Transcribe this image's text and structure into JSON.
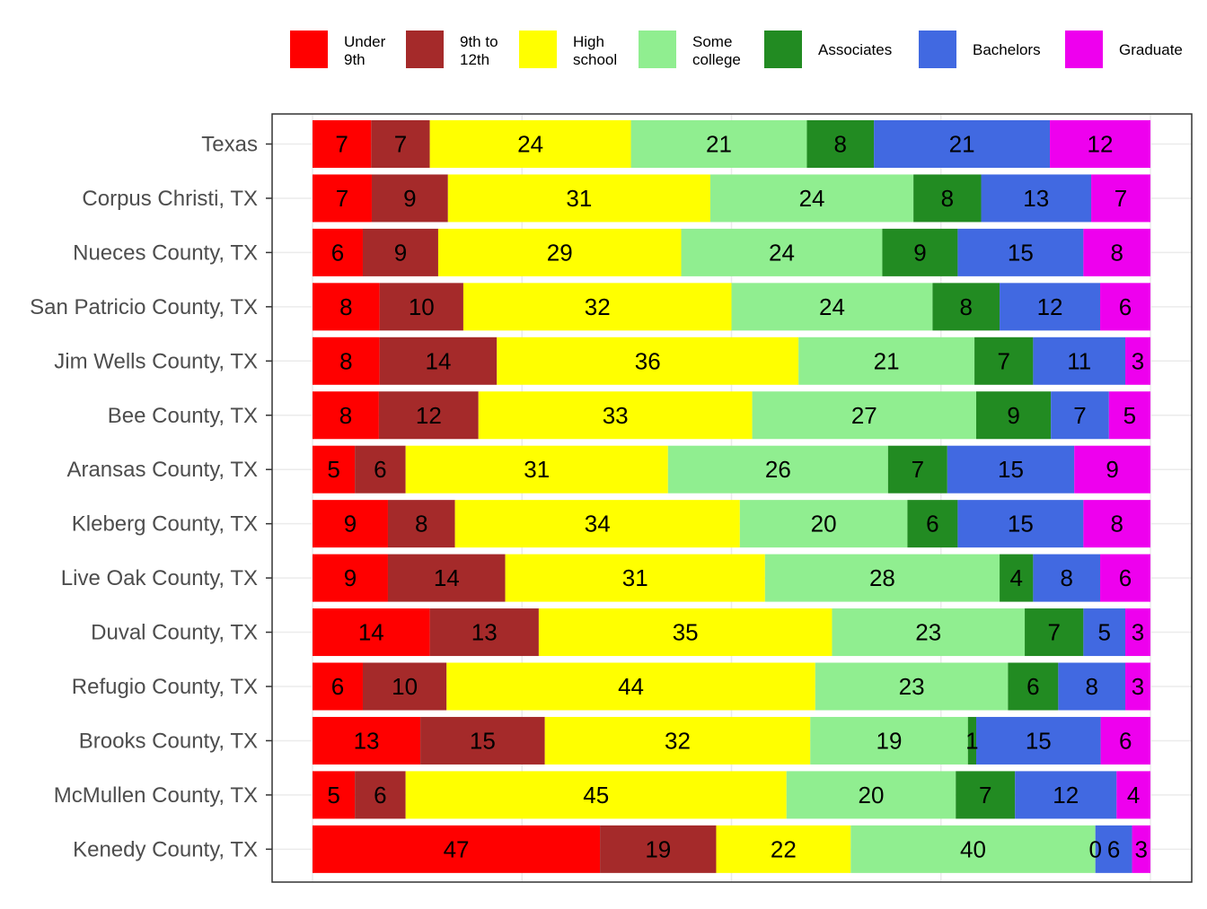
{
  "chart_data": {
    "type": "bar",
    "orientation": "horizontal",
    "stacked": true,
    "normalized": true,
    "xlim": [
      0,
      100
    ],
    "grid": true,
    "legend_position": "top",
    "categories": [
      "Texas",
      "Corpus Christi, TX",
      "Nueces County, TX",
      "San Patricio County, TX",
      "Jim Wells County, TX",
      "Bee County, TX",
      "Aransas County, TX",
      "Kleberg County, TX",
      "Live Oak County, TX",
      "Duval County, TX",
      "Refugio County, TX",
      "Brooks County, TX",
      "McMullen County, TX",
      "Kenedy County, TX"
    ],
    "series": [
      {
        "name": "Under 9th",
        "legend_lines": [
          "Under",
          "9th"
        ],
        "color": "#ff0000",
        "values": [
          7,
          7,
          6,
          8,
          8,
          8,
          5,
          9,
          9,
          14,
          6,
          13,
          5,
          47
        ]
      },
      {
        "name": "9th to 12th",
        "legend_lines": [
          "9th to",
          "12th"
        ],
        "color": "#a52a2a",
        "values": [
          7,
          9,
          9,
          10,
          14,
          12,
          6,
          8,
          14,
          13,
          10,
          15,
          6,
          19
        ]
      },
      {
        "name": "High school",
        "legend_lines": [
          "High",
          "school"
        ],
        "color": "#ffff00",
        "values": [
          24,
          31,
          29,
          32,
          36,
          33,
          31,
          34,
          31,
          35,
          44,
          32,
          45,
          22
        ]
      },
      {
        "name": "Some college",
        "legend_lines": [
          "Some",
          "college"
        ],
        "color": "#90ee90",
        "values": [
          21,
          24,
          24,
          24,
          21,
          27,
          26,
          20,
          28,
          23,
          23,
          19,
          20,
          40
        ]
      },
      {
        "name": "Associates",
        "legend_lines": [
          "Associates"
        ],
        "color": "#228b22",
        "values": [
          8,
          8,
          9,
          8,
          7,
          9,
          7,
          6,
          4,
          7,
          6,
          1,
          7,
          0
        ]
      },
      {
        "name": "Bachelors",
        "legend_lines": [
          "Bachelors"
        ],
        "color": "#4169e1",
        "values": [
          21,
          13,
          15,
          12,
          11,
          7,
          15,
          15,
          8,
          5,
          8,
          15,
          12,
          6
        ]
      },
      {
        "name": "Graduate",
        "legend_lines": [
          "Graduate"
        ],
        "color": "#ee00ee",
        "values": [
          12,
          7,
          8,
          6,
          3,
          5,
          9,
          8,
          6,
          3,
          3,
          6,
          4,
          3
        ]
      }
    ]
  }
}
